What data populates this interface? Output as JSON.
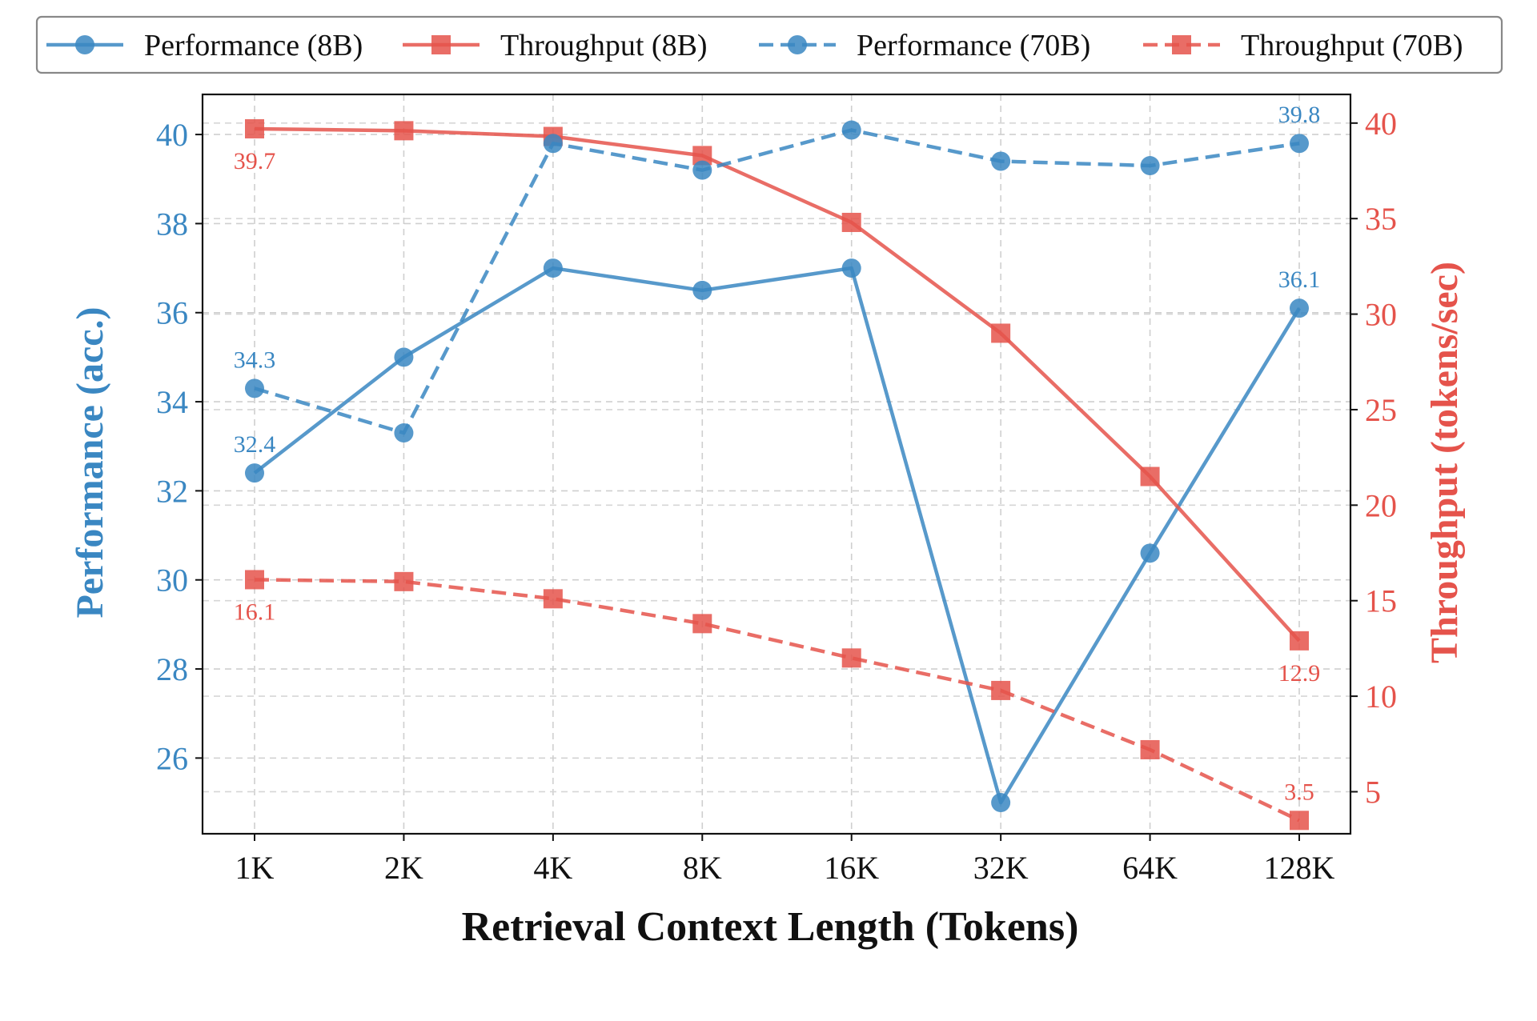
{
  "chart_data": {
    "type": "line",
    "title": "",
    "xlabel": "Retrieval Context Length (Tokens)",
    "ylabel_left": "Performance (acc.)",
    "ylabel_right": "Throughput (tokens/sec)",
    "categories": [
      "1K",
      "2K",
      "4K",
      "8K",
      "16K",
      "32K",
      "64K",
      "128K"
    ],
    "ylim_left": [
      24.3,
      40.9
    ],
    "ylim_right": [
      2.8,
      41.5
    ],
    "yticks_left": [
      26,
      28,
      30,
      32,
      34,
      36,
      38,
      40
    ],
    "yticks_right": [
      5,
      10,
      15,
      20,
      25,
      30,
      35,
      40
    ],
    "grid": true,
    "legend_position": "top",
    "colors": {
      "performance": "#3a87c2",
      "throughput": "#e5534b"
    },
    "series": [
      {
        "name": "Performance (8B)",
        "axis": "left",
        "style": "solid",
        "marker": "circle",
        "values": [
          32.4,
          35.0,
          37.0,
          36.5,
          37.0,
          25.0,
          30.6,
          36.1
        ]
      },
      {
        "name": "Throughput (8B)",
        "axis": "right",
        "style": "solid",
        "marker": "square",
        "values": [
          39.7,
          39.6,
          39.3,
          38.3,
          34.8,
          29.0,
          21.5,
          12.9
        ]
      },
      {
        "name": "Performance (70B)",
        "axis": "left",
        "style": "dashed",
        "marker": "circle",
        "values": [
          34.3,
          33.3,
          39.8,
          39.2,
          40.1,
          39.4,
          39.3,
          39.8
        ]
      },
      {
        "name": "Throughput (70B)",
        "axis": "right",
        "style": "dashed",
        "marker": "square",
        "values": [
          16.1,
          16.0,
          15.1,
          13.8,
          12.0,
          10.3,
          7.2,
          3.5
        ]
      }
    ],
    "annotations": [
      {
        "series": 0,
        "index": 0,
        "text": "32.4"
      },
      {
        "series": 0,
        "index": 7,
        "text": "36.1"
      },
      {
        "series": 1,
        "index": 0,
        "text": "39.7"
      },
      {
        "series": 1,
        "index": 7,
        "text": "12.9"
      },
      {
        "series": 2,
        "index": 0,
        "text": "34.3"
      },
      {
        "series": 2,
        "index": 7,
        "text": "39.8"
      },
      {
        "series": 3,
        "index": 0,
        "text": "16.1"
      },
      {
        "series": 3,
        "index": 7,
        "text": "3.5"
      }
    ]
  }
}
